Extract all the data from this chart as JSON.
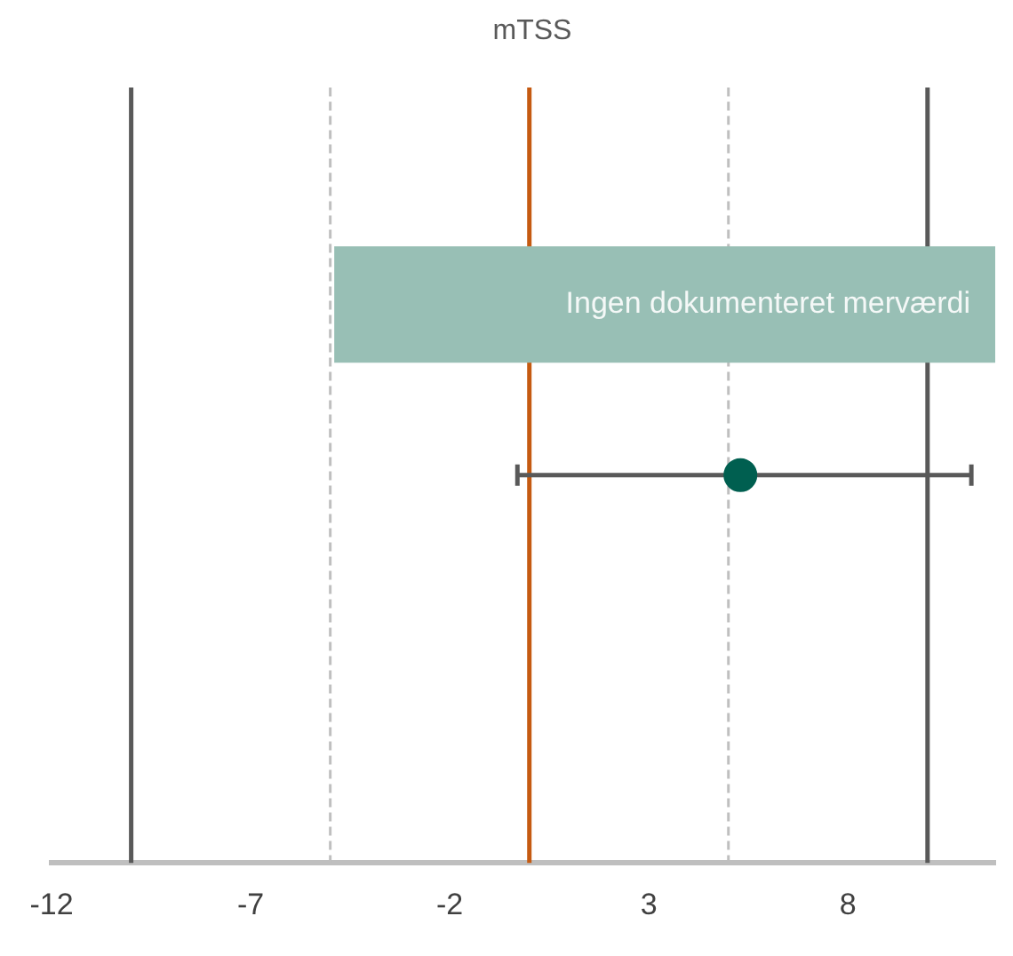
{
  "chart_data": {
    "type": "scatter",
    "title": "mTSS",
    "orientation": "horizontal",
    "categories": [
      null
    ],
    "values": [
      5.3
    ],
    "errors": [
      [
        -0.3,
        11.1
      ]
    ],
    "color": "#005f50",
    "marker": "circle",
    "xlim": [
      -12,
      11.7
    ],
    "xticks": [
      -12,
      -7,
      -2,
      3,
      8
    ],
    "grid": false,
    "legend": false,
    "ref_lines": [
      {
        "axis": "x",
        "value": -10,
        "color": "#595959"
      },
      {
        "axis": "x",
        "value": -5,
        "color": "#bfbfbf",
        "line_style": "dashed"
      },
      {
        "axis": "x",
        "value": 0,
        "color": "#c55a11"
      },
      {
        "axis": "x",
        "value": 5,
        "color": "#bfbfbf",
        "line_style": "dashed"
      },
      {
        "axis": "x",
        "value": 10,
        "color": "#595959"
      }
    ],
    "bands": [
      {
        "axis": "x",
        "from": -4.9,
        "to": 11.7,
        "label": "Ingen dokumenteret merværdi",
        "color": "#98bfb5"
      }
    ]
  }
}
